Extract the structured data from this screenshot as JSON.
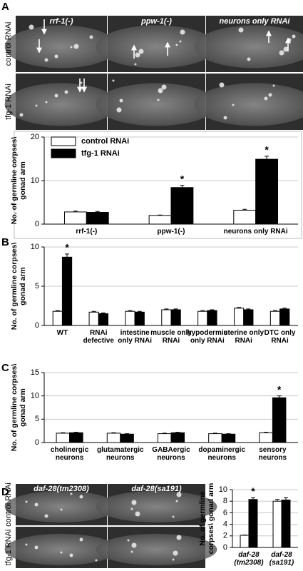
{
  "panel_labels": [
    "A",
    "B",
    "C",
    "D"
  ],
  "panel_a_images": {
    "columns": [
      "rrf-1(-)",
      "ppw-1(-)",
      "neurons only RNAi"
    ],
    "rows": [
      "control RNAi",
      "tfg-1 RNAi"
    ]
  },
  "panel_d_images": {
    "columns": [
      "daf-28(tm2308)",
      "daf-28(sa191)"
    ],
    "rows": [
      "control RNAi",
      "tfg-1 RNAi"
    ]
  },
  "chart_data": [
    {
      "type": "bar",
      "ylabel": "No. of germline corpses\\ gonad arm",
      "categories": [
        "rrf-1(-)",
        "ppw-1(-)",
        "neurons only RNAi"
      ],
      "series": [
        {
          "name": "control RNAi",
          "color": "#ffffff",
          "values": [
            2.8,
            2.0,
            3.2
          ],
          "errors": [
            0.2,
            0.1,
            0.2
          ]
        },
        {
          "name": "tfg-1 RNAi",
          "color": "#000000",
          "values": [
            2.7,
            8.4,
            14.9
          ],
          "errors": [
            0.2,
            0.5,
            0.7
          ]
        }
      ],
      "significance": [
        null,
        "*",
        "*"
      ],
      "ylim": [
        0,
        20
      ],
      "yticks": [
        0,
        10,
        20
      ],
      "grid": true,
      "legend": "upper left"
    },
    {
      "type": "bar",
      "ylabel": "No. of germline corpses\\ gonad arm",
      "categories": [
        "WT",
        "RNAi defective",
        "intestine only RNAi",
        "muscle only RNAi",
        "hypodermis only RNAi",
        "uterine only RNAi",
        "DTC only RNAi"
      ],
      "series": [
        {
          "color": "#ffffff",
          "values": [
            1.8,
            1.7,
            1.8,
            2.0,
            1.8,
            2.2,
            1.8
          ],
          "errors": [
            0.1,
            0.1,
            0.1,
            0.1,
            0.1,
            0.1,
            0.1
          ]
        },
        {
          "color": "#000000",
          "values": [
            8.7,
            1.5,
            1.7,
            2.0,
            1.9,
            2.0,
            2.1
          ],
          "errors": [
            0.4,
            0.1,
            0.1,
            0.1,
            0.1,
            0.1,
            0.1
          ]
        }
      ],
      "significance": [
        "*",
        null,
        null,
        null,
        null,
        null,
        null
      ],
      "ylim": [
        0,
        10
      ],
      "yticks": [
        0,
        5,
        10
      ],
      "grid": true
    },
    {
      "type": "bar",
      "ylabel": "No. of germline corpses\\ gonad arm",
      "categories": [
        "cholinergic neurons",
        "glutamatergic neurons",
        "GABAergic neurons",
        "dopaminergic neurons",
        "sensory neurons"
      ],
      "series": [
        {
          "color": "#ffffff",
          "values": [
            2.0,
            2.0,
            1.9,
            1.9,
            2.1
          ],
          "errors": [
            0.1,
            0.1,
            0.1,
            0.1,
            0.1
          ]
        },
        {
          "color": "#000000",
          "values": [
            2.1,
            1.8,
            2.1,
            1.8,
            9.6
          ],
          "errors": [
            0.1,
            0.1,
            0.1,
            0.1,
            0.4
          ]
        }
      ],
      "significance": [
        null,
        null,
        null,
        null,
        "*"
      ],
      "ylim": [
        0,
        15
      ],
      "yticks": [
        0,
        5,
        10,
        15
      ],
      "grid": true
    },
    {
      "type": "bar",
      "ylabel": "No. of germline corpses\\ gonad arm",
      "categories": [
        "daf-28 (tm2308)",
        "daf-28 (sa191)"
      ],
      "series": [
        {
          "color": "#ffffff",
          "values": [
            2.1,
            8.0
          ],
          "errors": [
            0.05,
            0.3
          ]
        },
        {
          "color": "#000000",
          "values": [
            8.3,
            8.2
          ],
          "errors": [
            0.3,
            0.4
          ]
        }
      ],
      "significance": [
        "*",
        null
      ],
      "ylim": [
        0,
        10
      ],
      "yticks": [
        0,
        2,
        4,
        6,
        8,
        10
      ],
      "grid": true
    }
  ]
}
